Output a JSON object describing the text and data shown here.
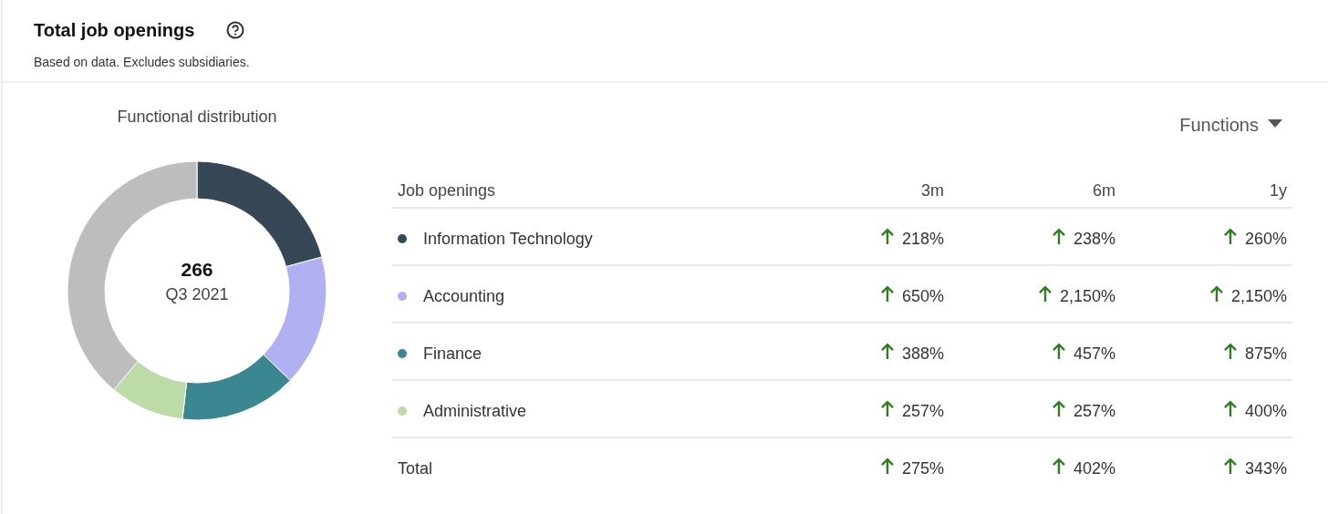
{
  "chart_data": [
    {
      "type": "donut",
      "title": "Total job openings",
      "subtitle": "Based on data. Excludes subsidiaries.",
      "categories": [
        null,
        null,
        null,
        null,
        null
      ],
      "values": [
        20.8,
        16.4,
        14.6,
        9.3,
        38.9
      ],
      "colors": [
        "#364855",
        "#b1b0f2",
        "#3a8691",
        "#bddba6",
        "#bdbdbd"
      ],
      "annotations": [
        "Functional distribution",
        "266",
        "Q3 2021"
      ]
    },
    {
      "type": "other",
      "annotations": [
        "Job openings",
        "Functions"
      ],
      "categories": [
        "Information Technology",
        "Accounting",
        "Finance",
        "Administrative",
        "Total"
      ],
      "colors": [
        "#364855",
        "#b1b0f2",
        "#3a8691",
        "#bddba6",
        null
      ],
      "series": [
        {
          "name": "3m",
          "values": [
            218,
            650,
            388,
            257,
            275
          ],
          "value_labels": [
            "218%",
            "650%",
            "388%",
            "257%",
            "275%"
          ]
        },
        {
          "name": "6m",
          "values": [
            238,
            2150,
            457,
            257,
            402
          ],
          "value_labels": [
            "238%",
            "2,150%",
            "457%",
            "257%",
            "402%"
          ]
        },
        {
          "name": "1y",
          "values": [
            260,
            2150,
            875,
            400,
            343
          ],
          "value_labels": [
            "260%",
            "2,150%",
            "875%",
            "400%",
            "343%"
          ]
        }
      ]
    }
  ]
}
